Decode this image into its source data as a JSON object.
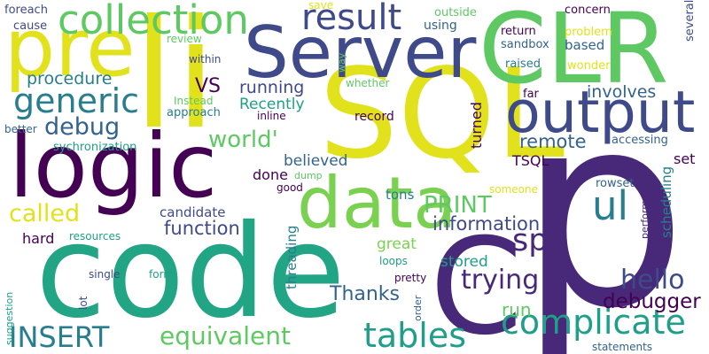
{
  "palette": {
    "yellow": "#e2e21c",
    "lime": "#7ad151",
    "green": "#5ec962",
    "teal": "#21a585",
    "seagreen": "#2ab07f",
    "cyan": "#1f9e89",
    "blue": "#287d8e",
    "steel": "#33638d",
    "indigo": "#3e4a89",
    "purple": "#482878",
    "dark": "#440154",
    "violet": "#472d7b"
  },
  "words": [
    {
      "text": "p",
      "color": "purple"
    },
    {
      "text": "code",
      "color": "teal"
    },
    {
      "text": "SQL",
      "color": "yellow"
    },
    {
      "text": "li",
      "color": "yellow"
    },
    {
      "text": "CLR",
      "color": "green"
    },
    {
      "text": "logic",
      "color": "dark"
    },
    {
      "text": "pre",
      "color": "yellow"
    },
    {
      "text": "Server",
      "color": "indigo"
    },
    {
      "text": "C",
      "color": "purple"
    },
    {
      "text": "data",
      "color": "lime"
    },
    {
      "text": "output",
      "color": "indigo"
    },
    {
      "text": "collection",
      "color": "green"
    },
    {
      "text": "result",
      "color": "indigo"
    },
    {
      "text": "generic",
      "color": "blue"
    },
    {
      "text": "complicate",
      "color": "cyan"
    },
    {
      "text": "tables",
      "color": "cyan"
    },
    {
      "text": "ul",
      "color": "blue"
    },
    {
      "text": "sp",
      "color": "purple"
    },
    {
      "text": "INSERT",
      "color": "blue"
    },
    {
      "text": "equivalent",
      "color": "green"
    },
    {
      "text": "trying",
      "color": "purple"
    },
    {
      "text": "hello",
      "color": "indigo"
    },
    {
      "text": "debug",
      "color": "steel"
    },
    {
      "text": "world'",
      "color": "green"
    },
    {
      "text": "called",
      "color": "yellow"
    },
    {
      "text": "information",
      "color": "indigo"
    },
    {
      "text": "function",
      "color": "indigo"
    },
    {
      "text": "PRINT",
      "color": "green"
    },
    {
      "text": "Thanks",
      "color": "steel"
    },
    {
      "text": "debugger",
      "color": "dark"
    },
    {
      "text": "procedure",
      "color": "blue"
    },
    {
      "text": "remote",
      "color": "steel"
    },
    {
      "text": "running",
      "color": "indigo"
    },
    {
      "text": "VS",
      "color": "dark"
    },
    {
      "text": "involves",
      "color": "steel"
    },
    {
      "text": "Recently",
      "color": "cyan"
    },
    {
      "text": "run",
      "color": "green"
    },
    {
      "text": "great",
      "color": "lime"
    },
    {
      "text": "stored",
      "color": "cyan"
    },
    {
      "text": "believed",
      "color": "steel"
    },
    {
      "text": "turned",
      "color": "dark"
    },
    {
      "text": "TSQL",
      "color": "dark"
    },
    {
      "text": "set",
      "color": "dark"
    },
    {
      "text": "done",
      "color": "dark"
    },
    {
      "text": "candidate",
      "color": "indigo"
    },
    {
      "text": "hard",
      "color": "dark"
    },
    {
      "text": "threading",
      "color": "blue"
    },
    {
      "text": "scheduling",
      "color": "blue"
    },
    {
      "text": "tons",
      "color": "blue"
    },
    {
      "text": "record",
      "color": "dark"
    },
    {
      "text": "better",
      "color": "steel"
    },
    {
      "text": "foreach",
      "color": "indigo"
    },
    {
      "text": "cause",
      "color": "indigo"
    },
    {
      "text": "save",
      "color": "yellow"
    },
    {
      "text": "using",
      "color": "steel"
    },
    {
      "text": "outside",
      "color": "green"
    },
    {
      "text": "concern",
      "color": "dark"
    },
    {
      "text": "return",
      "color": "dark"
    },
    {
      "text": "sandbox",
      "color": "steel"
    },
    {
      "text": "based",
      "color": "steel"
    },
    {
      "text": "problem",
      "color": "yellow"
    },
    {
      "text": "raised",
      "color": "blue"
    },
    {
      "text": "wonder",
      "color": "yellow"
    },
    {
      "text": "several",
      "color": "indigo"
    },
    {
      "text": "review",
      "color": "green"
    },
    {
      "text": "within",
      "color": "indigo"
    },
    {
      "text": "way",
      "color": "green"
    },
    {
      "text": "whether",
      "color": "green"
    },
    {
      "text": "Instead",
      "color": "green"
    },
    {
      "text": "approach",
      "color": "blue"
    },
    {
      "text": "inline",
      "color": "dark"
    },
    {
      "text": "far",
      "color": "dark"
    },
    {
      "text": "accessing",
      "color": "steel"
    },
    {
      "text": "sychronization",
      "color": "cyan"
    },
    {
      "text": "good",
      "color": "dark"
    },
    {
      "text": "dump",
      "color": "green"
    },
    {
      "text": "someone",
      "color": "yellow"
    },
    {
      "text": "rowset",
      "color": "steel"
    },
    {
      "text": "performance",
      "color": "purple"
    },
    {
      "text": "resources",
      "color": "cyan"
    },
    {
      "text": "single",
      "color": "indigo"
    },
    {
      "text": "form",
      "color": "cyan"
    },
    {
      "text": "lot",
      "color": "indigo"
    },
    {
      "text": "loops",
      "color": "cyan"
    },
    {
      "text": "pretty",
      "color": "dark"
    },
    {
      "text": "order",
      "color": "steel"
    },
    {
      "text": "suggestion",
      "color": "cyan"
    },
    {
      "text": "statements",
      "color": "steel"
    }
  ]
}
